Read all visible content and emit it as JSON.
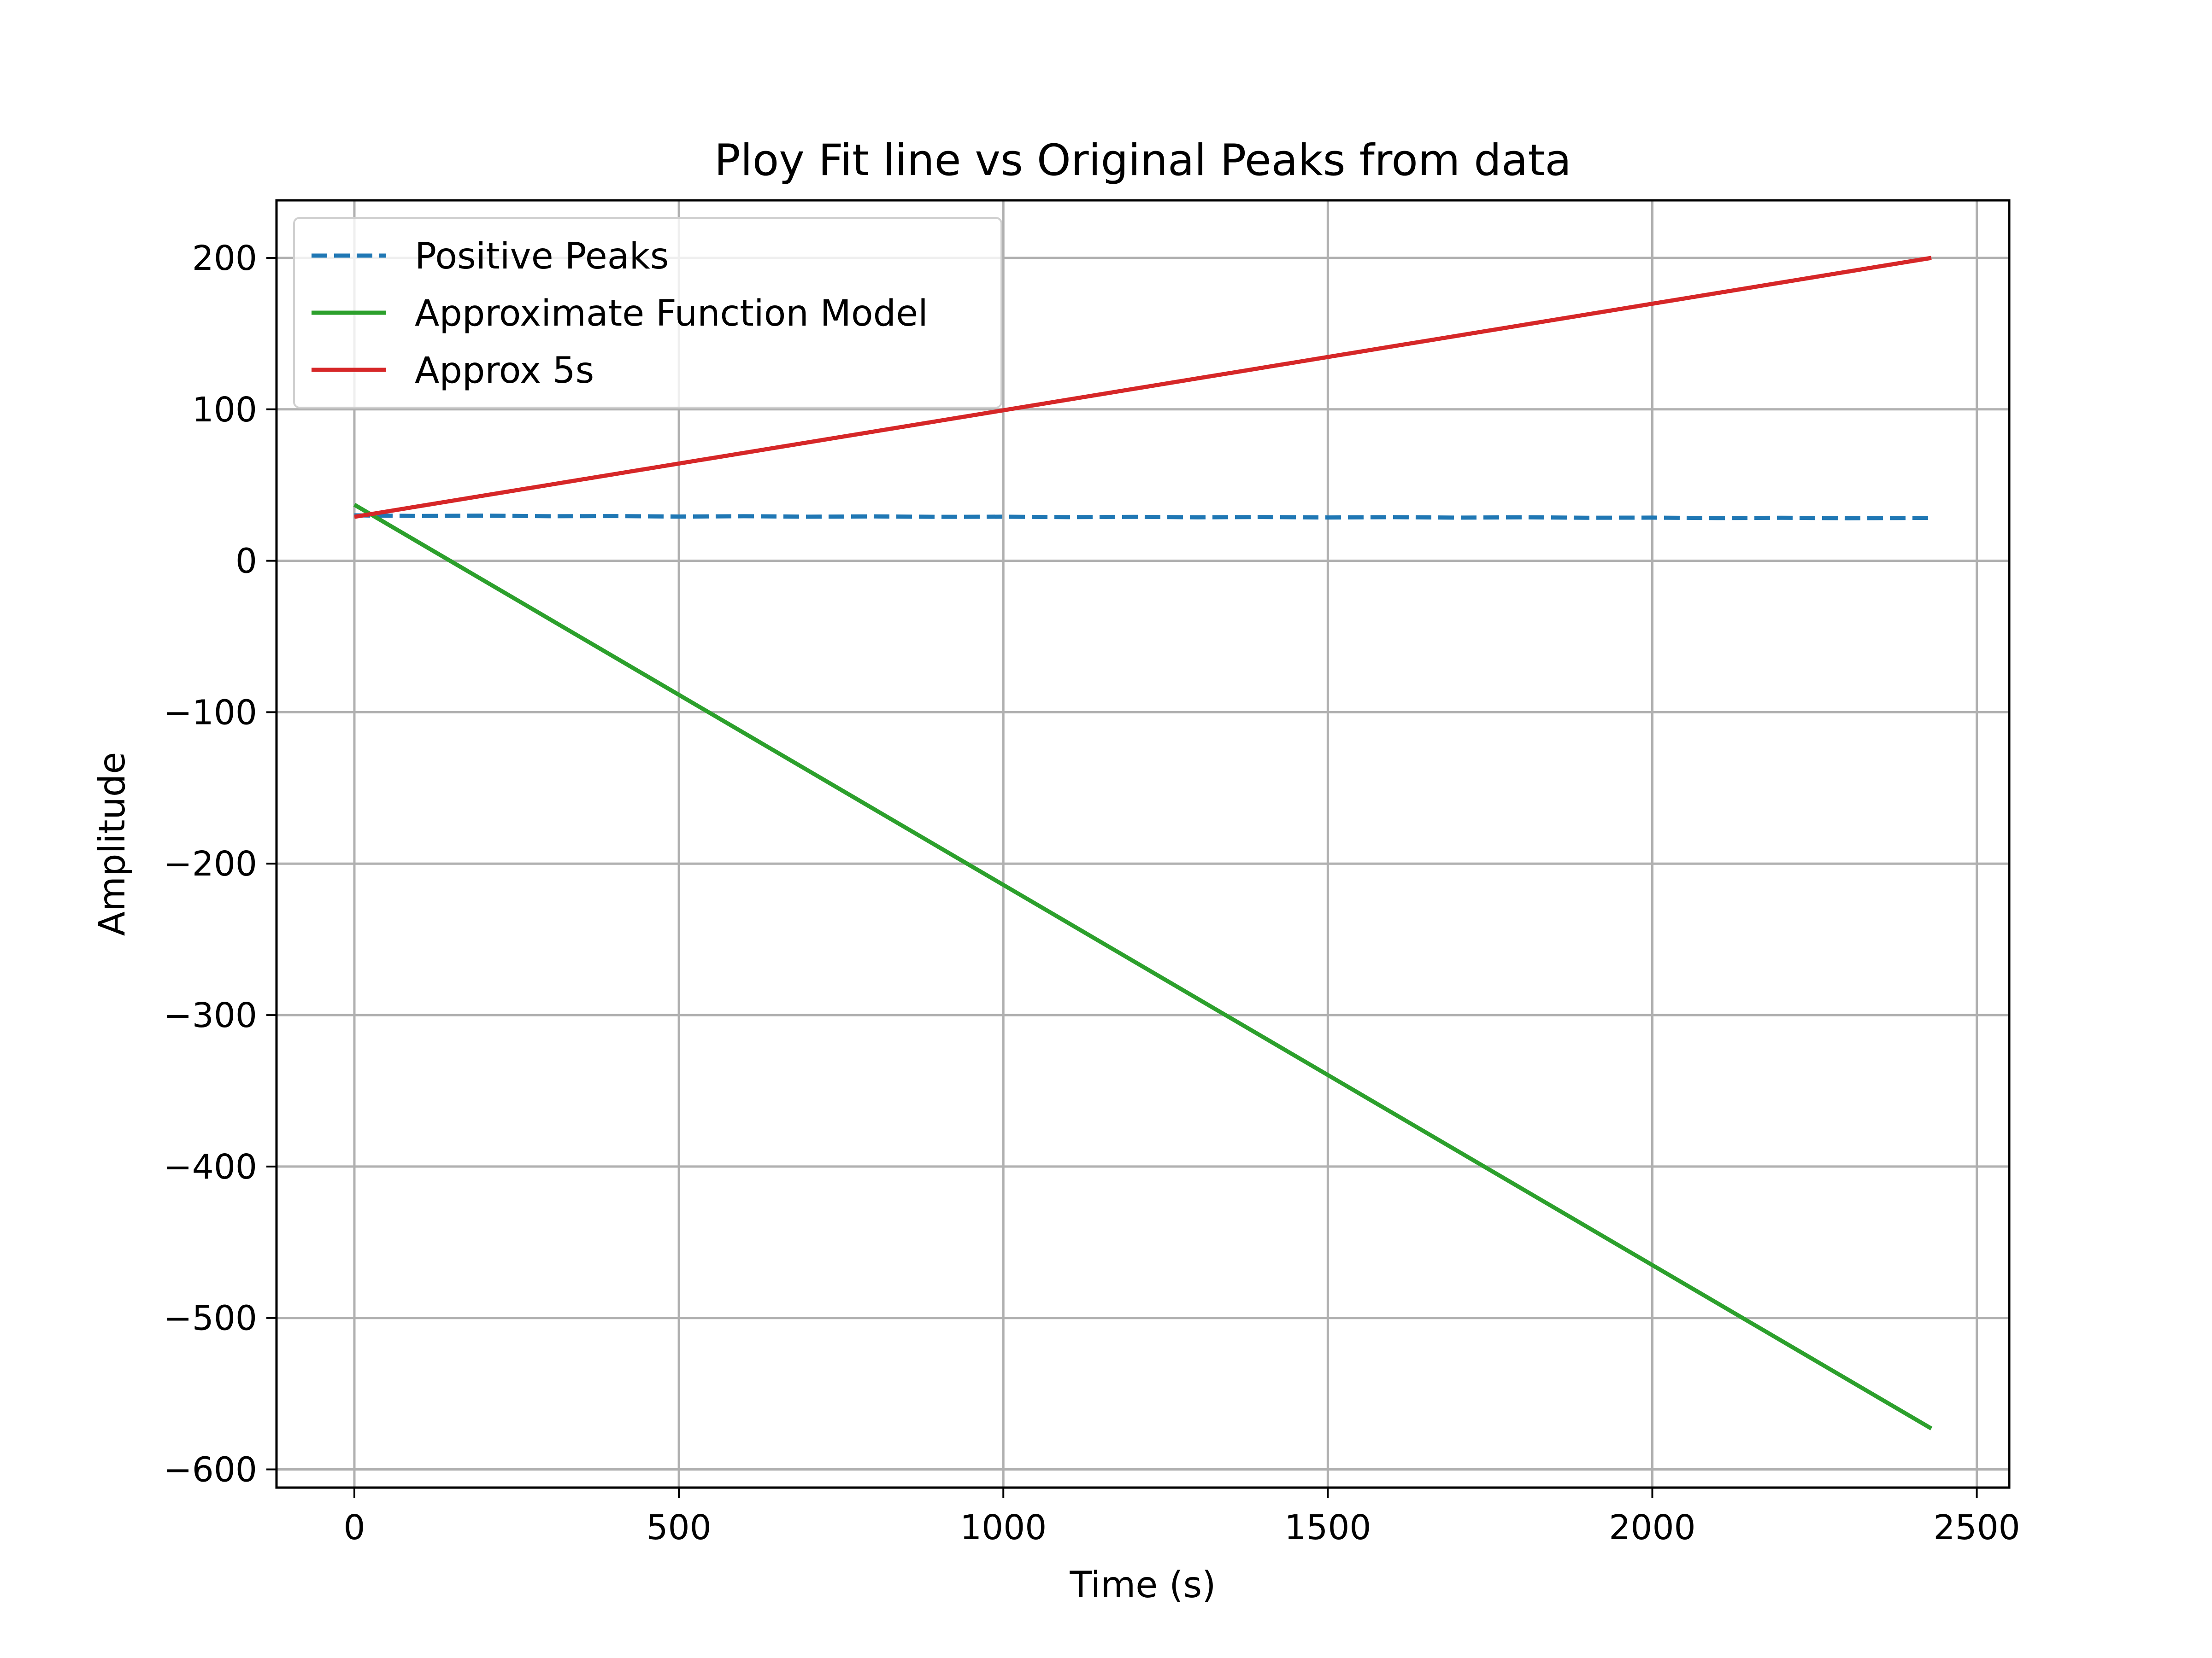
{
  "chart_data": {
    "type": "line",
    "title": "Ploy Fit line vs Original Peaks from data",
    "xlabel": "Time (s)",
    "ylabel": "Amplitude",
    "xlim": [
      -120,
      2550
    ],
    "ylim": [
      -612,
      238
    ],
    "xticks": [
      0,
      500,
      1000,
      1500,
      2000,
      2500
    ],
    "yticks": [
      200,
      100,
      0,
      -100,
      -200,
      -300,
      -400,
      -500,
      -600
    ],
    "xtick_labels": [
      "0",
      "500",
      "1000",
      "1500",
      "2000",
      "2500"
    ],
    "ytick_labels": [
      "200",
      "100",
      "0",
      "−100",
      "−200",
      "−300",
      "−400",
      "−500",
      "−600"
    ],
    "grid": true,
    "legend_position": "upper-left",
    "series": [
      {
        "name": "Positive Peaks",
        "color": "#1f77b4",
        "style": "dashed",
        "x": [
          0,
          100,
          200,
          300,
          400,
          500,
          600,
          700,
          800,
          900,
          1000,
          1100,
          1200,
          1300,
          1400,
          1500,
          1600,
          1700,
          1800,
          1900,
          2000,
          2100,
          2200,
          2300,
          2430
        ],
        "y": [
          30,
          29.6,
          29.8,
          29.4,
          29.5,
          29.2,
          29.4,
          29.1,
          29.3,
          29.0,
          29.1,
          28.8,
          29.0,
          28.7,
          28.9,
          28.6,
          28.8,
          28.5,
          28.7,
          28.4,
          28.5,
          28.2,
          28.4,
          28.1,
          28.3
        ]
      },
      {
        "name": "Approximate Function Model",
        "color": "#2ca02c",
        "style": "solid",
        "x": [
          0,
          2430
        ],
        "y": [
          37,
          -573
        ]
      },
      {
        "name": "Approx 5s",
        "color": "#d62728",
        "style": "solid",
        "x": [
          0,
          2430
        ],
        "y": [
          29,
          200
        ]
      }
    ]
  }
}
